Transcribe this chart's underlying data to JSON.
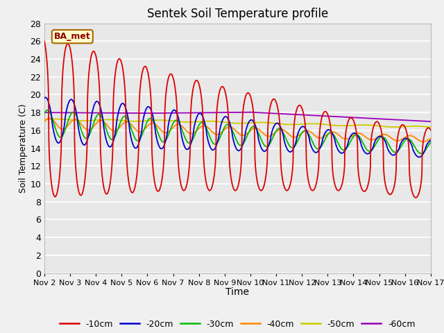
{
  "title": "Sentek Soil Temperature profile",
  "xlabel": "Time",
  "ylabel": "Soil Temperature (C)",
  "ylim": [
    0,
    28
  ],
  "yticks": [
    0,
    2,
    4,
    6,
    8,
    10,
    12,
    14,
    16,
    18,
    20,
    22,
    24,
    26,
    28
  ],
  "legend_label": "BA_met",
  "colors": {
    "-10cm": "#dd0000",
    "-20cm": "#0000cc",
    "-30cm": "#00bb00",
    "-40cm": "#ff8800",
    "-50cm": "#cccc00",
    "-60cm": "#9900bb"
  },
  "x_start": 2,
  "x_end": 17,
  "x_ticks": [
    2,
    3,
    4,
    5,
    6,
    7,
    8,
    9,
    10,
    11,
    12,
    13,
    14,
    15,
    16,
    17
  ],
  "x_tick_labels": [
    "Nov 2",
    "Nov 3",
    "Nov 4",
    "Nov 5",
    "Nov 6",
    "Nov 7",
    "Nov 8",
    "Nov 9",
    "Nov 10",
    "Nov 11",
    "Nov 12",
    "Nov 13",
    "Nov 14",
    "Nov 15",
    "Nov 16",
    "Nov 17"
  ],
  "fig_bg": "#f0f0f0",
  "ax_bg": "#e8e8e8"
}
